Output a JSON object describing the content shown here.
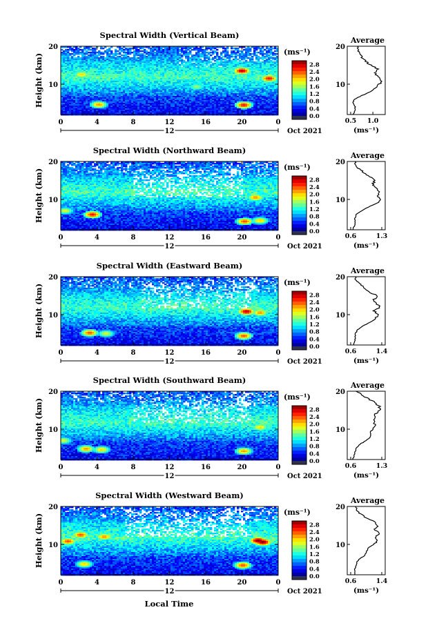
{
  "figure": {
    "xlabel": "Local Time",
    "date_label": "Oct 2021",
    "noon_marker": "12",
    "unit_label": "(ms⁻¹)",
    "ylabel": "Height (km)",
    "average_title": "Average"
  },
  "chart_data": [
    {
      "type": "heatmap",
      "title": "Spectral Width (Vertical Beam)",
      "xlabel": "Local Time",
      "ylabel": "Height (km)",
      "x_ticks": [
        "0",
        "4",
        "8",
        "12",
        "16",
        "20",
        "0"
      ],
      "xlim": [
        0,
        24
      ],
      "y_ticks": [
        "20",
        "10"
      ],
      "ylim": [
        2,
        20
      ],
      "colorbar": {
        "label": "(ms⁻¹)",
        "ticks": [
          "2.8",
          "2.4",
          "2.0",
          "1.6",
          "1.2",
          "0.8",
          "0.4",
          "0.0"
        ],
        "range": [
          0,
          3.0
        ]
      },
      "hotspots": [
        [
          4.2,
          4.6,
          2.2
        ],
        [
          20.2,
          4.5,
          2.6
        ],
        [
          20.0,
          13.5,
          2.8
        ],
        [
          23.0,
          11.5,
          2.6
        ],
        [
          2.3,
          12.5,
          2.0
        ],
        [
          15.0,
          9.3,
          1.6
        ]
      ],
      "white_gaps": [
        [
          13,
          18,
          14.5,
          19.5,
          0.2
        ],
        [
          1,
          10,
          17,
          20,
          0.25
        ],
        [
          16,
          24,
          16,
          20,
          0.3
        ]
      ],
      "profile": {
        "title": "Average",
        "xlabel": "(ms⁻¹)",
        "x_ticks": [
          "0.5",
          "1.0"
        ],
        "xlim": [
          0.5,
          1.2
        ],
        "y_ticks": [
          "20",
          "10"
        ],
        "ylim": [
          2,
          20
        ],
        "height": [
          2,
          3,
          4,
          5,
          6,
          7,
          8,
          9,
          10,
          11,
          12,
          13,
          14,
          15,
          16,
          17,
          18,
          19,
          20
        ],
        "value": [
          0.55,
          0.6,
          0.6,
          0.55,
          0.58,
          0.75,
          0.95,
          1.05,
          1.15,
          1.2,
          1.1,
          1.05,
          1.12,
          0.95,
          0.85,
          0.75,
          0.7,
          0.68,
          0.65
        ]
      }
    },
    {
      "type": "heatmap",
      "title": "Spectral Width (Northward Beam)",
      "xlabel": "Local Time",
      "ylabel": "Height (km)",
      "x_ticks": [
        "0",
        "4",
        "8",
        "12",
        "16",
        "20",
        "0"
      ],
      "xlim": [
        0,
        24
      ],
      "y_ticks": [
        "20",
        "10"
      ],
      "ylim": [
        2,
        20
      ],
      "colorbar": {
        "label": "(ms⁻¹)",
        "ticks": [
          "2.8",
          "2.4",
          "2.0",
          "1.6",
          "1.2",
          "0.8",
          "0.4",
          "0.0"
        ],
        "range": [
          0,
          3.0
        ]
      },
      "hotspots": [
        [
          3.5,
          6.0,
          2.6
        ],
        [
          20.3,
          4.2,
          2.4
        ],
        [
          22.0,
          4.4,
          2.0
        ],
        [
          0.5,
          7.0,
          1.8
        ],
        [
          21.5,
          10.5,
          2.2
        ]
      ],
      "white_gaps": [
        [
          8,
          20,
          10.5,
          18,
          0.35
        ],
        [
          1,
          8,
          17,
          20,
          0.2
        ],
        [
          18,
          24,
          16,
          20,
          0.25
        ]
      ],
      "profile": {
        "title": "Average",
        "xlabel": "(ms⁻¹)",
        "x_ticks": [
          "0.6",
          "1.3"
        ],
        "xlim": [
          0.6,
          1.3
        ],
        "y_ticks": [
          "20",
          "10"
        ],
        "ylim": [
          2,
          20
        ],
        "height": [
          2,
          3,
          4,
          5,
          6,
          7,
          8,
          9,
          10,
          11,
          12,
          13,
          14,
          15,
          16,
          17,
          18,
          19,
          20
        ],
        "value": [
          0.65,
          0.68,
          0.7,
          0.7,
          0.72,
          0.85,
          1.0,
          1.2,
          1.25,
          1.2,
          1.25,
          1.15,
          1.1,
          1.15,
          1.05,
          0.9,
          0.8,
          0.72,
          0.7
        ]
      }
    },
    {
      "type": "heatmap",
      "title": "Spectral Width (Eastward Beam)",
      "xlabel": "Local Time",
      "ylabel": "Height (km)",
      "x_ticks": [
        "0",
        "4",
        "8",
        "12",
        "16",
        "20",
        "0"
      ],
      "xlim": [
        0,
        24
      ],
      "y_ticks": [
        "20",
        "10"
      ],
      "ylim": [
        2,
        20
      ],
      "colorbar": {
        "label": "(ms⁻¹)",
        "ticks": [
          "2.8",
          "2.4",
          "2.0",
          "1.6",
          "1.2",
          "0.8",
          "0.4",
          "0.0"
        ],
        "range": [
          0,
          3.0
        ]
      },
      "hotspots": [
        [
          3.2,
          5.2,
          2.4
        ],
        [
          20.2,
          4.4,
          2.4
        ],
        [
          20.5,
          10.8,
          2.8
        ],
        [
          22.0,
          10.5,
          2.2
        ],
        [
          5.0,
          5.0,
          1.8
        ]
      ],
      "white_gaps": [
        [
          9,
          21,
          11.5,
          18.5,
          0.35
        ],
        [
          1,
          8,
          17,
          20,
          0.2
        ],
        [
          18,
          24,
          16,
          20,
          0.25
        ]
      ],
      "profile": {
        "title": "Average",
        "xlabel": "(ms⁻¹)",
        "x_ticks": [
          "0.6",
          "1.4"
        ],
        "xlim": [
          0.6,
          1.4
        ],
        "y_ticks": [
          "20",
          "10"
        ],
        "ylim": [
          2,
          20
        ],
        "height": [
          2,
          3,
          4,
          5,
          6,
          7,
          8,
          9,
          10,
          11,
          12,
          13,
          14,
          15,
          16,
          17,
          18,
          19,
          20
        ],
        "value": [
          0.68,
          0.7,
          0.72,
          0.72,
          0.78,
          0.9,
          1.1,
          1.25,
          1.3,
          1.2,
          1.35,
          1.25,
          1.2,
          1.3,
          1.05,
          0.95,
          0.85,
          0.75,
          0.72
        ]
      }
    },
    {
      "type": "heatmap",
      "title": "Spectral Width (Southward Beam)",
      "xlabel": "Local Time",
      "ylabel": "Height (km)",
      "x_ticks": [
        "0",
        "4",
        "8",
        "12",
        "16",
        "20",
        "0"
      ],
      "xlim": [
        0,
        24
      ],
      "y_ticks": [
        "20",
        "10"
      ],
      "ylim": [
        2,
        20
      ],
      "colorbar": {
        "label": "(ms⁻¹)",
        "ticks": [
          "2.8",
          "2.4",
          "2.0",
          "1.6",
          "1.2",
          "0.8",
          "0.4",
          "0.0"
        ],
        "range": [
          0,
          3.0
        ]
      },
      "hotspots": [
        [
          2.8,
          4.8,
          2.2
        ],
        [
          4.5,
          4.6,
          2.0
        ],
        [
          20.2,
          4.2,
          2.2
        ],
        [
          22.0,
          10.5,
          2.0
        ],
        [
          0.3,
          7.0,
          1.8
        ]
      ],
      "white_gaps": [
        [
          8,
          21,
          11.5,
          18.5,
          0.35
        ],
        [
          1,
          8,
          17,
          20,
          0.2
        ],
        [
          18,
          24,
          16,
          20,
          0.25
        ]
      ],
      "profile": {
        "title": "Average",
        "xlabel": "(ms⁻¹)",
        "x_ticks": [
          "0.6",
          "1.3"
        ],
        "xlim": [
          0.6,
          1.3
        ],
        "y_ticks": [
          "20",
          "10"
        ],
        "ylim": [
          2,
          20
        ],
        "height": [
          2,
          3,
          4,
          5,
          6,
          7,
          8,
          9,
          10,
          11,
          12,
          13,
          14,
          15,
          16,
          17,
          18,
          19,
          20
        ],
        "value": [
          0.65,
          0.68,
          0.7,
          0.72,
          0.8,
          0.95,
          1.05,
          1.05,
          1.1,
          1.15,
          1.12,
          1.15,
          1.15,
          1.25,
          1.25,
          1.15,
          1.0,
          0.85,
          0.72
        ]
      }
    },
    {
      "type": "heatmap",
      "title": "Spectral Width (Westward Beam)",
      "xlabel": "Local Time",
      "ylabel": "Height (km)",
      "x_ticks": [
        "0",
        "4",
        "8",
        "12",
        "16",
        "20",
        "0"
      ],
      "xlim": [
        0,
        24
      ],
      "y_ticks": [
        "20",
        "10"
      ],
      "ylim": [
        2,
        20
      ],
      "colorbar": {
        "label": "(ms⁻¹)",
        "ticks": [
          "2.8",
          "2.4",
          "2.0",
          "1.6",
          "1.2",
          "0.8",
          "0.4",
          "0.0"
        ],
        "range": [
          0,
          3.0
        ]
      },
      "hotspots": [
        [
          21.8,
          11.0,
          3.0
        ],
        [
          22.3,
          10.6,
          3.0
        ],
        [
          2.2,
          12.5,
          2.4
        ],
        [
          4.8,
          12.0,
          2.2
        ],
        [
          0.8,
          10.8,
          2.4
        ],
        [
          20.1,
          4.5,
          2.4
        ],
        [
          2.6,
          4.8,
          2.0
        ]
      ],
      "white_gaps": [
        [
          7,
          21,
          12,
          19,
          0.4
        ],
        [
          1,
          8,
          17,
          20,
          0.2
        ],
        [
          18,
          24,
          16,
          20,
          0.25
        ]
      ],
      "profile": {
        "title": "Average",
        "xlabel": "(ms⁻¹)",
        "x_ticks": [
          "0.6",
          "1.4"
        ],
        "xlim": [
          0.6,
          1.4
        ],
        "y_ticks": [
          "20",
          "10"
        ],
        "ylim": [
          2,
          20
        ],
        "height": [
          2,
          3,
          4,
          5,
          6,
          7,
          8,
          9,
          10,
          11,
          12,
          13,
          14,
          15,
          16,
          17,
          18,
          19,
          20
        ],
        "value": [
          0.7,
          0.7,
          0.72,
          0.75,
          0.8,
          0.95,
          1.0,
          1.05,
          1.2,
          1.3,
          1.25,
          1.35,
          1.2,
          1.3,
          1.2,
          1.0,
          0.85,
          0.75,
          0.72
        ]
      }
    }
  ]
}
